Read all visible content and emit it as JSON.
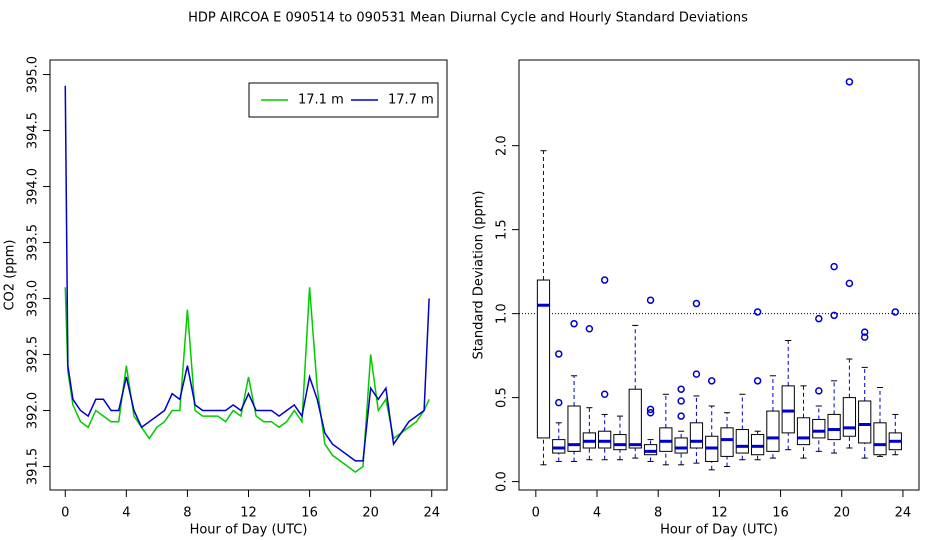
{
  "title": "HDP   AIRCOA E   090514 to 090531   Mean Diurnal Cycle and Hourly Standard Deviations",
  "chart_data": [
    {
      "type": "line",
      "xlabel": "Hour of Day (UTC)",
      "ylabel": "CO2 (ppm)",
      "xlim": [
        -1,
        25
      ],
      "ylim": [
        391.29,
        395.13
      ],
      "xticks": [
        0,
        4,
        8,
        12,
        16,
        20,
        24
      ],
      "yticks": [
        391.5,
        {
          "value": 392,
          "label": "392.0"
        },
        392.5,
        {
          "value": 393,
          "label": "393.0"
        },
        393.5,
        {
          "value": 394,
          "label": "394.0"
        },
        394.5,
        {
          "value": 395,
          "label": "395.0"
        }
      ],
      "legend": "top-right",
      "x": [
        0,
        0.17,
        0.5,
        1,
        1.5,
        2,
        2.5,
        3,
        3.5,
        4,
        4.5,
        5,
        5.5,
        6,
        6.5,
        7,
        7.5,
        8,
        8.5,
        9,
        9.5,
        10,
        10.5,
        11,
        11.5,
        12,
        12.5,
        13,
        13.5,
        14,
        14.5,
        15,
        15.5,
        16,
        16.5,
        17,
        17.5,
        18,
        18.5,
        19,
        19.5,
        20,
        20.5,
        21,
        21.5,
        22,
        22.5,
        23,
        23.5,
        23.83
      ],
      "series": [
        {
          "name": "17.1 m",
          "color": "#00cc00",
          "values": [
            393.1,
            392.35,
            392.05,
            391.9,
            391.85,
            392.0,
            391.95,
            391.9,
            391.9,
            392.4,
            391.95,
            391.85,
            391.75,
            391.85,
            391.9,
            392.0,
            392.0,
            392.9,
            392.0,
            391.95,
            391.95,
            391.95,
            391.9,
            392.0,
            391.95,
            392.3,
            391.95,
            391.9,
            391.9,
            391.85,
            391.9,
            392.0,
            391.9,
            393.1,
            392.2,
            391.7,
            391.6,
            391.55,
            391.5,
            391.45,
            391.5,
            392.5,
            392.0,
            392.1,
            391.75,
            391.8,
            391.85,
            391.9,
            392.0,
            392.1
          ]
        },
        {
          "name": "17.7 m",
          "color": "#0000cc",
          "values": [
            394.9,
            392.4,
            392.1,
            392.0,
            391.95,
            392.1,
            392.1,
            392.0,
            392.0,
            392.3,
            392.0,
            391.85,
            391.9,
            391.95,
            392.0,
            392.15,
            392.1,
            392.4,
            392.05,
            392.0,
            392.0,
            392.0,
            392.0,
            392.05,
            392.0,
            392.15,
            392.0,
            392.0,
            392.0,
            391.95,
            392.0,
            392.05,
            391.95,
            392.3,
            392.1,
            391.8,
            391.7,
            391.65,
            391.6,
            391.55,
            391.55,
            392.2,
            392.1,
            392.2,
            391.7,
            391.8,
            391.9,
            391.95,
            392.0,
            393.0
          ]
        }
      ]
    },
    {
      "type": "boxplot",
      "xlabel": "Hour of Day (UTC)",
      "ylabel": "Standard Deviation (ppm)",
      "xlim": [
        -1.1,
        25.05
      ],
      "ylim": [
        -0.05,
        2.51
      ],
      "xticks": [
        0,
        4,
        8,
        12,
        16,
        20,
        24
      ],
      "yticks": [
        {
          "value": 0,
          "label": "0.0"
        },
        0.5,
        {
          "value": 1,
          "label": "1.0"
        },
        1.5,
        {
          "value": 2,
          "label": "2.0"
        }
      ],
      "hline": 1,
      "color": "#0000cc",
      "x": [
        0.5,
        1.5,
        2.5,
        3.5,
        4.5,
        5.5,
        6.5,
        7.5,
        8.5,
        9.5,
        10.5,
        11.5,
        12.5,
        13.5,
        14.5,
        15.5,
        16.5,
        17.5,
        18.5,
        19.5,
        20.5,
        21.5,
        22.5,
        23.5
      ],
      "min": [
        0.1,
        0.12,
        0.12,
        0.13,
        0.13,
        0.13,
        0.14,
        0.12,
        0.1,
        0.1,
        0.11,
        0.07,
        0.09,
        0.13,
        0.13,
        0.14,
        0.19,
        0.14,
        0.18,
        0.17,
        0.2,
        0.14,
        0.15,
        0.16
      ],
      "q1": [
        0.26,
        0.17,
        0.18,
        0.2,
        0.2,
        0.19,
        0.2,
        0.16,
        0.18,
        0.17,
        0.2,
        0.12,
        0.15,
        0.17,
        0.16,
        0.18,
        0.29,
        0.22,
        0.26,
        0.25,
        0.27,
        0.23,
        0.16,
        0.19
      ],
      "median": [
        1.05,
        0.2,
        0.22,
        0.24,
        0.24,
        0.22,
        0.22,
        0.18,
        0.24,
        0.2,
        0.24,
        0.2,
        0.25,
        0.21,
        0.21,
        0.26,
        0.42,
        0.26,
        0.3,
        0.31,
        0.32,
        0.34,
        0.22,
        0.24
      ],
      "q3": [
        1.2,
        0.25,
        0.45,
        0.29,
        0.3,
        0.28,
        0.55,
        0.22,
        0.32,
        0.26,
        0.35,
        0.27,
        0.32,
        0.31,
        0.28,
        0.42,
        0.57,
        0.38,
        0.37,
        0.4,
        0.5,
        0.48,
        0.35,
        0.29
      ],
      "max": [
        1.97,
        0.35,
        0.63,
        0.44,
        0.4,
        0.39,
        0.93,
        0.25,
        0.52,
        0.3,
        0.51,
        0.45,
        0.41,
        0.52,
        0.3,
        0.63,
        0.84,
        0.57,
        0.45,
        0.6,
        0.73,
        0.68,
        0.56,
        0.4
      ],
      "outliers": [
        [],
        [
          0.76,
          0.47
        ],
        [
          0.94
        ],
        [
          0.91
        ],
        [
          1.2,
          0.52
        ],
        [],
        [],
        [
          1.08,
          0.43,
          0.41
        ],
        [],
        [
          0.55,
          0.48,
          0.39
        ],
        [
          1.06,
          0.64
        ],
        [
          0.6
        ],
        [],
        [],
        [
          1.01,
          0.6
        ],
        [],
        [],
        [],
        [
          0.97,
          0.54
        ],
        [
          1.28,
          0.99
        ],
        [
          2.38,
          1.18
        ],
        [
          0.89,
          0.86
        ],
        [],
        [
          1.01
        ]
      ]
    }
  ]
}
